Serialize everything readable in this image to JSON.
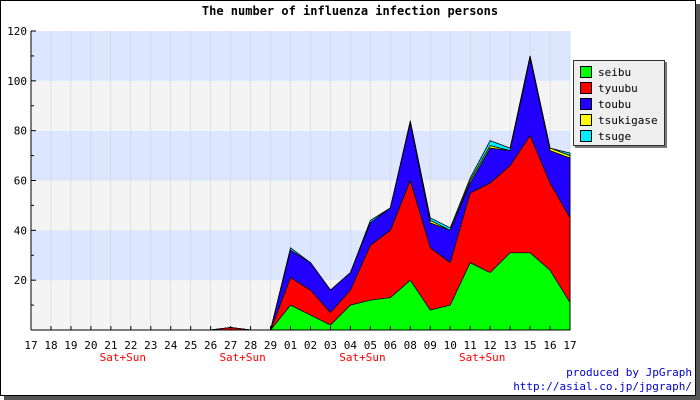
{
  "chart_data": {
    "type": "area",
    "title": "The number of influenza infection persons",
    "categories": [
      "17",
      "18",
      "19",
      "20",
      "21",
      "22",
      "23",
      "24",
      "25",
      "26",
      "27",
      "28",
      "29",
      "01",
      "02",
      "03",
      "04",
      "05",
      "06",
      "08",
      "09",
      "10",
      "11",
      "12",
      "13",
      "15",
      "16",
      "17"
    ],
    "weekend_labels": [
      {
        "category_index": 4,
        "text": "Sat+Sun"
      },
      {
        "category_index": 10,
        "text": "Sat+Sun"
      },
      {
        "category_index": 16,
        "text": "Sat+Sun"
      },
      {
        "category_index": 22,
        "text": "Sat+Sun"
      }
    ],
    "ylim": [
      0,
      120
    ],
    "yticks": [
      20,
      40,
      60,
      80,
      100,
      120
    ],
    "grid": true,
    "stacked": true,
    "legend_position": "right",
    "series": [
      {
        "name": "seibu",
        "color": "#00ff00",
        "values": [
          0,
          0,
          0,
          0,
          0,
          0,
          0,
          0,
          0,
          0,
          0,
          0,
          0,
          10,
          6,
          2,
          10,
          12,
          13,
          20,
          8,
          10,
          27,
          23,
          31,
          31,
          24,
          11
        ]
      },
      {
        "name": "tyuubu",
        "color": "#ff0000",
        "values": [
          0,
          0,
          0,
          0,
          0,
          0,
          0,
          0,
          0,
          0,
          1,
          0,
          0,
          11,
          10,
          5,
          6,
          22,
          27,
          40,
          25,
          17,
          28,
          36,
          35,
          47,
          35,
          34
        ]
      },
      {
        "name": "toubu",
        "color": "#2200ff",
        "values": [
          0,
          0,
          0,
          0,
          0,
          0,
          0,
          0,
          0,
          0,
          0,
          0,
          0,
          11,
          11,
          9,
          7,
          9,
          9,
          23,
          10,
          13,
          4,
          14,
          6,
          31,
          13,
          24
        ]
      },
      {
        "name": "tsukigase",
        "color": "#ffff00",
        "values": [
          0,
          0,
          0,
          0,
          0,
          0,
          0,
          0,
          0,
          0,
          0,
          0,
          0,
          0,
          0,
          0,
          0,
          0,
          0,
          0,
          1,
          0,
          1,
          1,
          0,
          1,
          1,
          1
        ]
      },
      {
        "name": "tsuge",
        "color": "#00eeff",
        "values": [
          0,
          0,
          0,
          0,
          0,
          0,
          0,
          0,
          0,
          0,
          0,
          0,
          0,
          1,
          0,
          0,
          0,
          1,
          0,
          1,
          1,
          1,
          1,
          2,
          1,
          0,
          0,
          1
        ]
      }
    ]
  },
  "footer": {
    "line1": "produced by JpGraph",
    "line2": "http://asial.co.jp/jpgraph/"
  }
}
